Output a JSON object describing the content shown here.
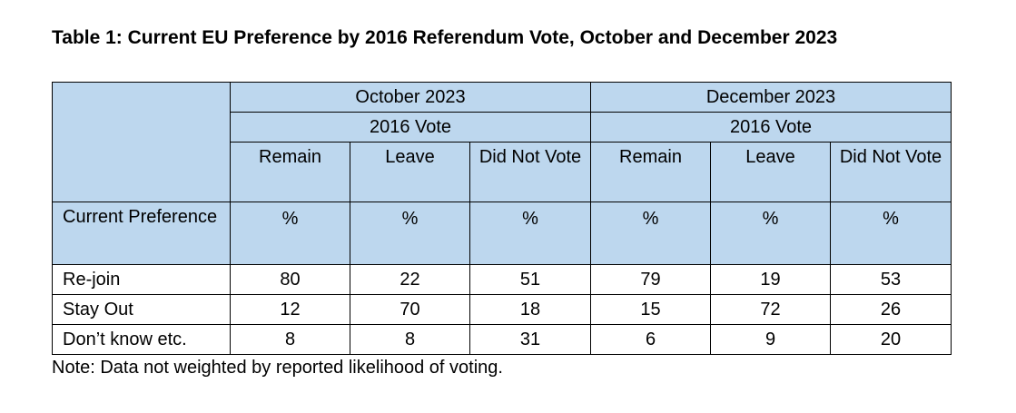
{
  "title": "Table 1: Current EU Preference by 2016 Referendum Vote, October and December 2023",
  "header": {
    "periods": [
      "October 2023",
      "December 2023"
    ],
    "subheader": "2016 Vote",
    "columns": [
      "Remain",
      "Leave",
      "Did Not Vote",
      "Remain",
      "Leave",
      "Did Not Vote"
    ],
    "row_label_header": "Current Preference",
    "unit": "%"
  },
  "rows": [
    {
      "label": "Re-join",
      "values": [
        "80",
        "22",
        "51",
        "79",
        "19",
        "53"
      ]
    },
    {
      "label": "Stay Out",
      "values": [
        "12",
        "70",
        "18",
        "15",
        "72",
        "26"
      ]
    },
    {
      "label": "Don’t know etc.",
      "values": [
        "8",
        "8",
        "31",
        "6",
        "9",
        "20"
      ]
    }
  ],
  "note": "Note: Data not weighted by reported likelihood of voting.",
  "colors": {
    "header_bg": "#bdd7ee",
    "border": "#000000"
  }
}
